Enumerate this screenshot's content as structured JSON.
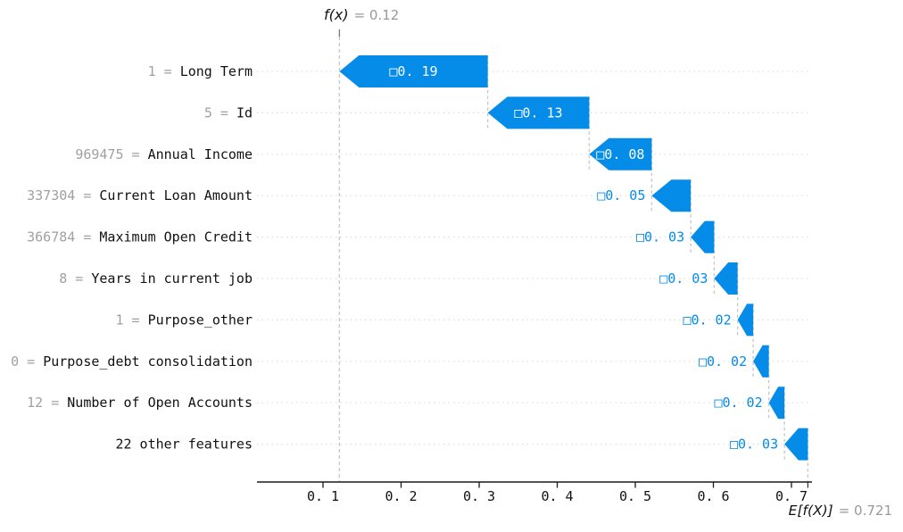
{
  "annotations": {
    "fx": {
      "label": "f(x)",
      "value_text": "= 0.12"
    },
    "efx": {
      "label": "E[f(X)]",
      "value_text": "= 0.721"
    }
  },
  "chart_data": {
    "type": "waterfall",
    "title": "f(x) = 0.12",
    "base_label": "E[f(X)] = 0.721",
    "base_value": 0.721,
    "fx_value": 0.12,
    "direction": "negative",
    "bar_color": "#058ce8",
    "label_inside_color": "#ffffff",
    "label_outside_color": "#058ce8",
    "feature_value_color": "#a0a0a0",
    "feature_name_color": "#111111",
    "gridline_color": "#dedede",
    "connector_color": "#c9c9c9",
    "separator": " = ",
    "rows": [
      {
        "feature_value": "1",
        "feature": "Long Term",
        "shap": -0.19,
        "bar_label": "□0. 19"
      },
      {
        "feature_value": "5",
        "feature": "Id",
        "shap": -0.13,
        "bar_label": "□0. 13"
      },
      {
        "feature_value": "969475",
        "feature": "Annual Income",
        "shap": -0.08,
        "bar_label": "□0. 08"
      },
      {
        "feature_value": "337304",
        "feature": "Current Loan Amount",
        "shap": -0.05,
        "bar_label": "□0. 05"
      },
      {
        "feature_value": "366784",
        "feature": "Maximum Open Credit",
        "shap": -0.03,
        "bar_label": "□0. 03"
      },
      {
        "feature_value": "8",
        "feature": "Years in current job",
        "shap": -0.03,
        "bar_label": "□0. 03"
      },
      {
        "feature_value": "1",
        "feature": "Purpose_other",
        "shap": -0.02,
        "bar_label": "□0. 02"
      },
      {
        "feature_value": "0",
        "feature": "Purpose_debt consolidation",
        "shap": -0.02,
        "bar_label": "□0. 02"
      },
      {
        "feature_value": "12",
        "feature": "Number of Open Accounts",
        "shap": -0.02,
        "bar_label": "□0. 02"
      },
      {
        "feature_value": "",
        "feature": "22 other features",
        "shap": -0.03,
        "bar_label": "□0. 03"
      }
    ],
    "xticks": [
      {
        "v": 0.1,
        "label": "0. 1"
      },
      {
        "v": 0.2,
        "label": "0. 2"
      },
      {
        "v": 0.3,
        "label": "0. 3"
      },
      {
        "v": 0.4,
        "label": "0. 4"
      },
      {
        "v": 0.5,
        "label": "0. 5"
      },
      {
        "v": 0.6,
        "label": "0. 6"
      },
      {
        "v": 0.7,
        "label": "0. 7"
      }
    ],
    "xlim": [
      0.014,
      0.726
    ],
    "grid": "horizontal-dotted",
    "legend": "none"
  }
}
